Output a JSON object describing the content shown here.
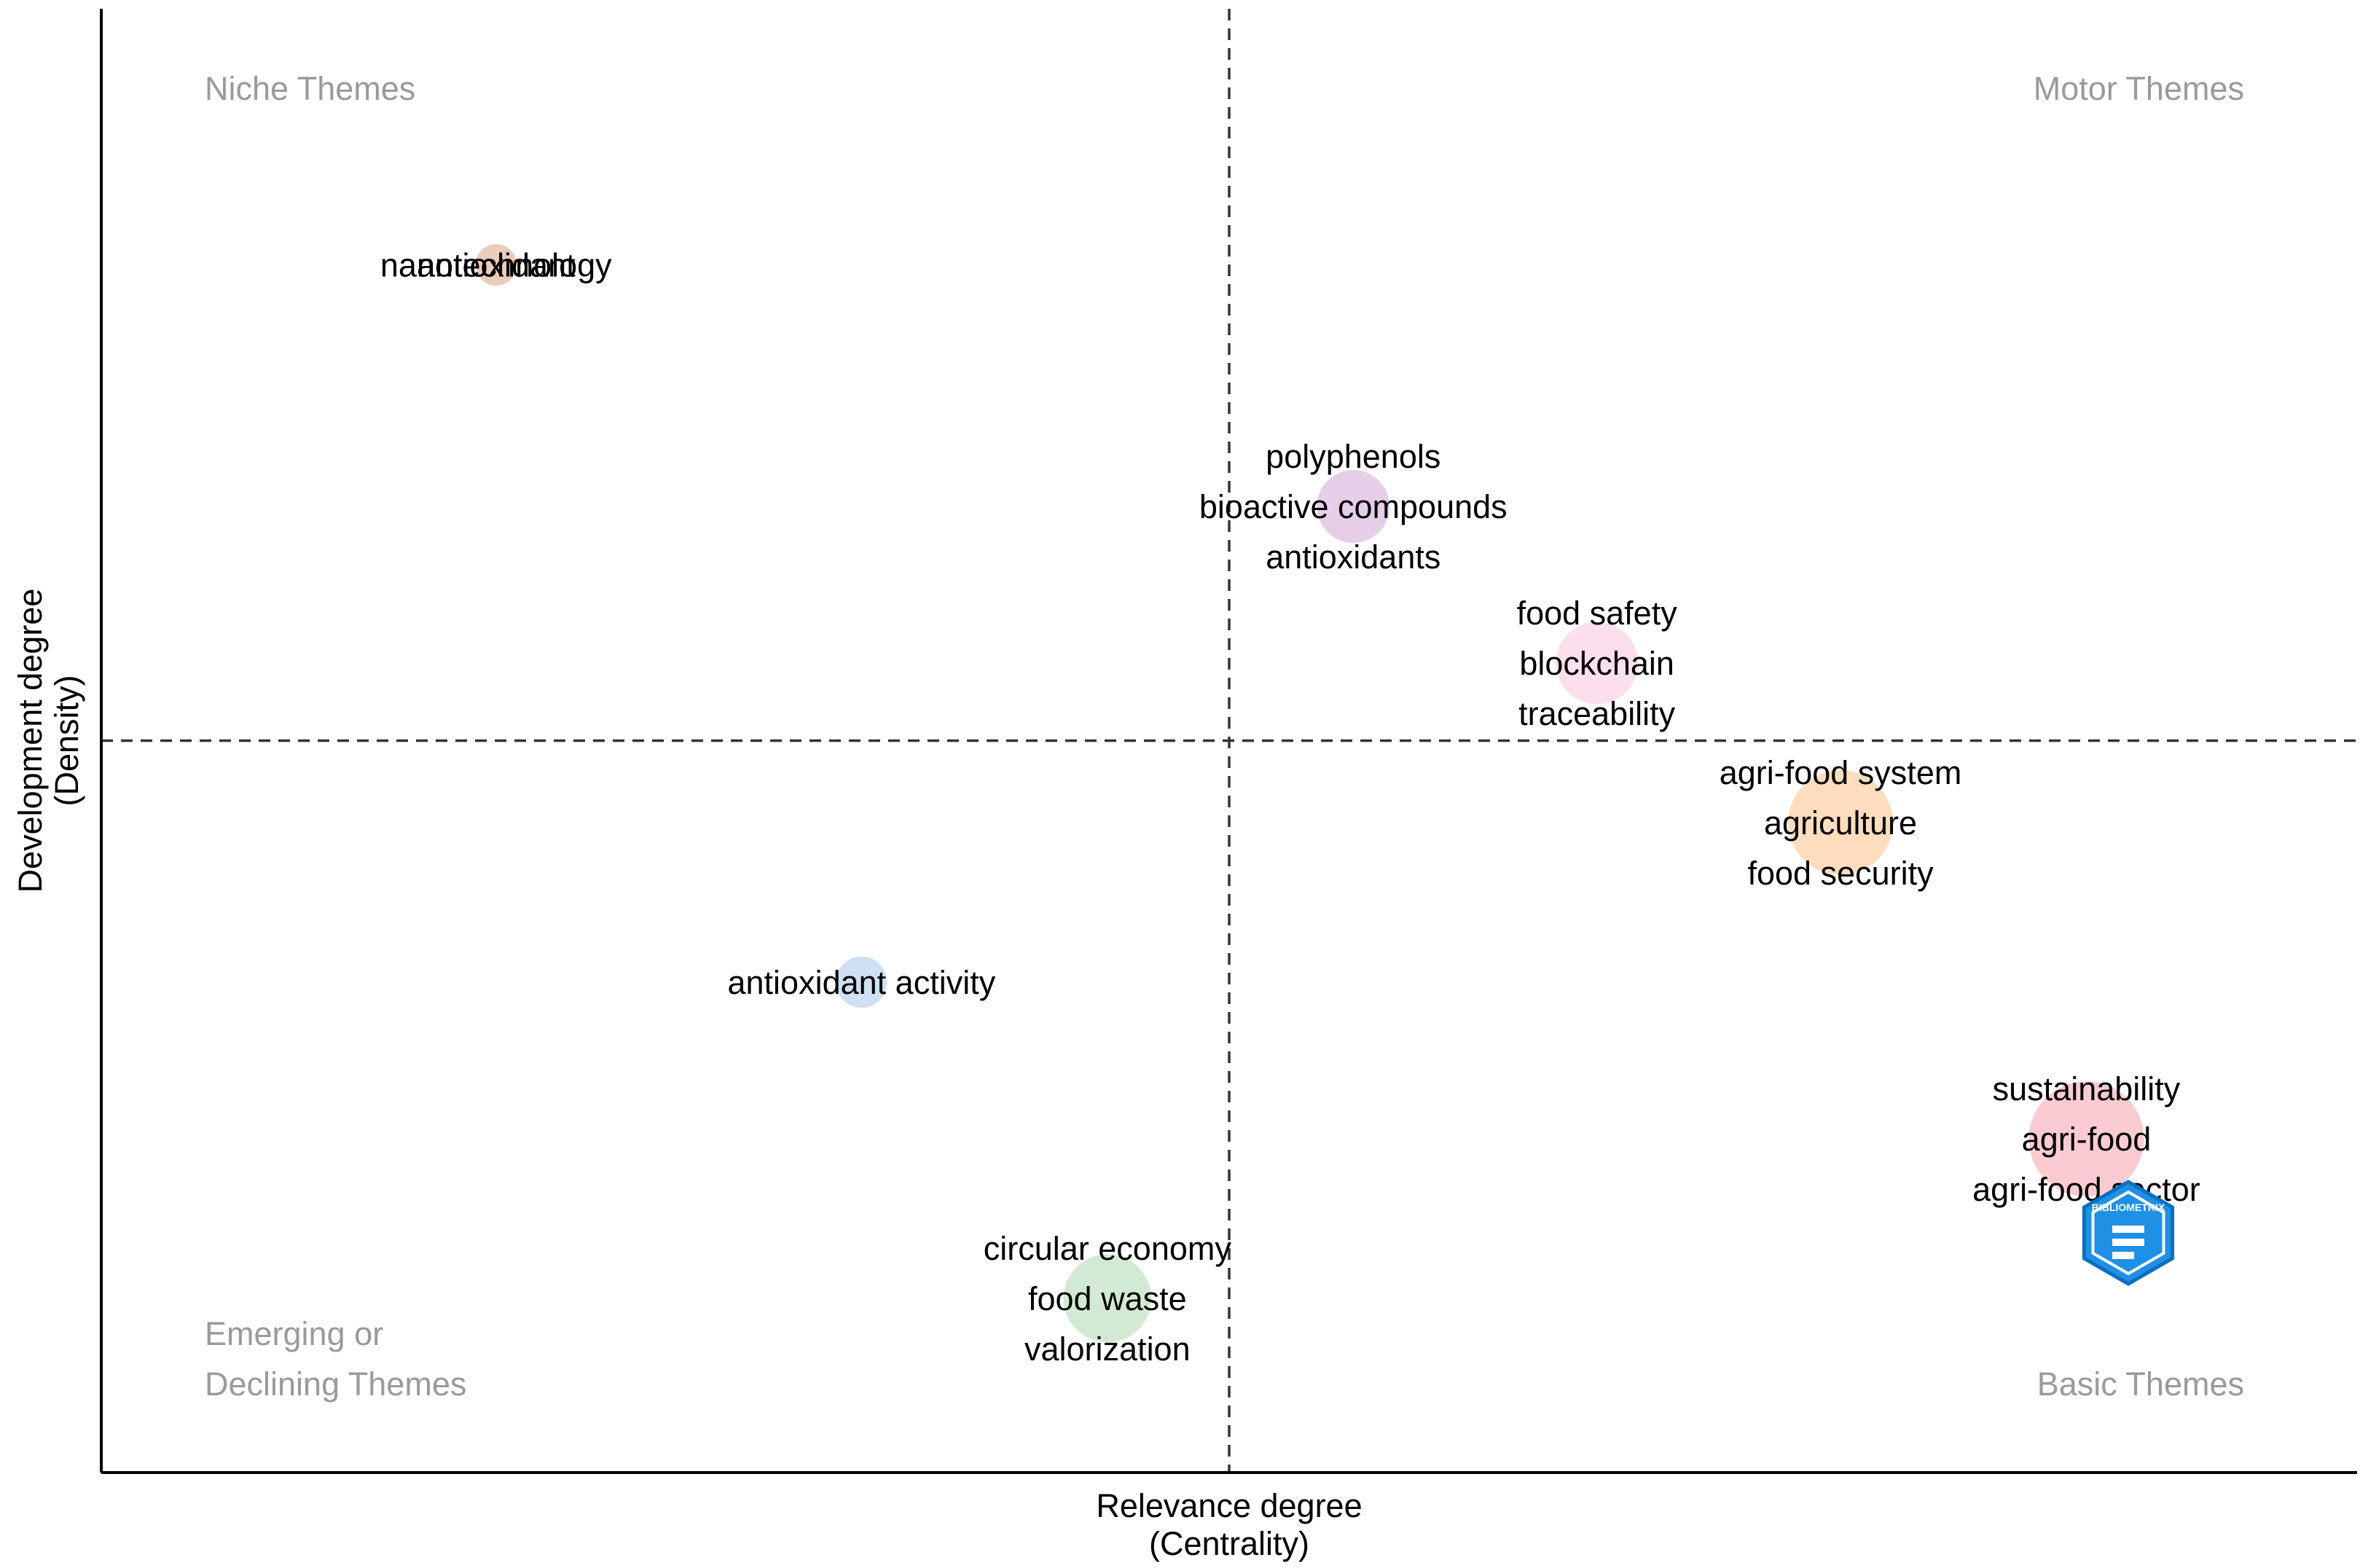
{
  "chart_data": {
    "type": "scatter",
    "title": "",
    "xlabel": [
      "Relevance degree",
      "(Centrality)"
    ],
    "ylabel": [
      "Development degree",
      "(Density)"
    ],
    "xlim": [
      0,
      1
    ],
    "ylim": [
      0,
      1
    ],
    "reference_lines": {
      "x": 0.5,
      "y": 0.5
    },
    "quadrants": {
      "top_left": [
        "Niche Themes"
      ],
      "top_right": [
        "Motor Themes"
      ],
      "bottom_left": [
        "Emerging or",
        "Declining Themes"
      ],
      "bottom_right": [
        "Basic Themes"
      ]
    },
    "clusters": [
      {
        "name": "nanotechnology",
        "labels": [
          "nanotechnology",
          "antioxidant"
        ],
        "x": 0.175,
        "y": 0.825,
        "size": 0.3,
        "color": "#e8c6b4"
      },
      {
        "name": "polyphenols",
        "labels": [
          "polyphenols",
          "bioactive compounds",
          "antioxidants"
        ],
        "x": 0.555,
        "y": 0.66,
        "size": 1.6,
        "color": "#e3c8e6"
      },
      {
        "name": "food safety",
        "labels": [
          "food safety",
          "blockchain",
          "traceability"
        ],
        "x": 0.663,
        "y": 0.553,
        "size": 2.2,
        "color": "#fbdcea"
      },
      {
        "name": "agri-food system",
        "labels": [
          "agri-food system",
          "agriculture",
          "food security"
        ],
        "x": 0.771,
        "y": 0.444,
        "size": 4.0,
        "color": "#fed9b8"
      },
      {
        "name": "antioxidant activity",
        "labels": [
          "antioxidant activity"
        ],
        "x": 0.337,
        "y": 0.335,
        "size": 0.6,
        "color": "#c9ddef"
      },
      {
        "name": "sustainability",
        "labels": [
          "sustainability",
          "agri-food",
          "agri-food sector"
        ],
        "x": 0.88,
        "y": 0.228,
        "size": 5.0,
        "color": "#f9c6cc"
      },
      {
        "name": "circular economy",
        "labels": [
          "circular economy",
          "food waste",
          "valorization"
        ],
        "x": 0.446,
        "y": 0.119,
        "size": 2.6,
        "color": "#cde8cf"
      }
    ],
    "legend": "none"
  },
  "watermark": {
    "name": "bibliometrix-logo",
    "text": "BIBLIOMETRIX",
    "color": "#1e90e6"
  }
}
